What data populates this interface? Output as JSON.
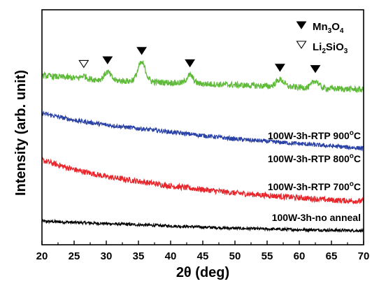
{
  "chart_data": {
    "type": "line",
    "xlabel": "2θ (deg)",
    "ylabel": "Intensity (arb. unit)",
    "xlim": [
      20,
      70
    ],
    "x_ticks": [
      20,
      25,
      30,
      35,
      40,
      45,
      50,
      55,
      60,
      65,
      70
    ],
    "y_ticks_shown": false,
    "grid": false,
    "series": [
      {
        "name": "100W-3h-no anneal",
        "color": "#000000",
        "points": [
          [
            20,
            0.1
          ],
          [
            25,
            0.095
          ],
          [
            30,
            0.09
          ],
          [
            35,
            0.085
          ],
          [
            40,
            0.08
          ],
          [
            45,
            0.075
          ],
          [
            50,
            0.07
          ],
          [
            55,
            0.067
          ],
          [
            60,
            0.064
          ],
          [
            65,
            0.062
          ],
          [
            70,
            0.06
          ]
        ],
        "peaks": []
      },
      {
        "name": "100W-3h-RTP 700°C",
        "color": "#e8262b",
        "points": [
          [
            20,
            0.36
          ],
          [
            25,
            0.32
          ],
          [
            30,
            0.29
          ],
          [
            35,
            0.27
          ],
          [
            40,
            0.25
          ],
          [
            45,
            0.235
          ],
          [
            50,
            0.22
          ],
          [
            55,
            0.21
          ],
          [
            60,
            0.2
          ],
          [
            65,
            0.19
          ],
          [
            70,
            0.185
          ]
        ],
        "peaks": []
      },
      {
        "name": "100W-3h-RTP 800°C",
        "color": "#2a41a5",
        "points": [
          [
            20,
            0.56
          ],
          [
            25,
            0.53
          ],
          [
            30,
            0.51
          ],
          [
            35,
            0.495
          ],
          [
            40,
            0.48
          ],
          [
            45,
            0.465
          ],
          [
            50,
            0.45
          ],
          [
            55,
            0.44
          ],
          [
            60,
            0.43
          ],
          [
            65,
            0.42
          ],
          [
            70,
            0.41
          ]
        ],
        "peaks": []
      },
      {
        "name": "100W-3h-RTP 900°C",
        "color": "#5fba3a",
        "points": [
          [
            20,
            0.72
          ],
          [
            25,
            0.71
          ],
          [
            30,
            0.7
          ],
          [
            35,
            0.695
          ],
          [
            40,
            0.69
          ],
          [
            45,
            0.685
          ],
          [
            50,
            0.68
          ],
          [
            55,
            0.675
          ],
          [
            60,
            0.67
          ],
          [
            65,
            0.665
          ],
          [
            70,
            0.66
          ]
        ],
        "peaks": [
          {
            "x": 26.5,
            "height": 0.012,
            "width": 0.4
          },
          {
            "x": 30.2,
            "height": 0.035,
            "width": 0.5
          },
          {
            "x": 35.5,
            "height": 0.08,
            "width": 0.6
          },
          {
            "x": 43.0,
            "height": 0.035,
            "width": 0.5
          },
          {
            "x": 57.0,
            "height": 0.03,
            "width": 0.6
          },
          {
            "x": 62.5,
            "height": 0.03,
            "width": 0.5
          }
        ]
      }
    ],
    "markers": [
      {
        "x": 26.5,
        "phase": "Li2SiO3",
        "symbol": "open-triangle-down"
      },
      {
        "x": 30.2,
        "phase": "Mn3O4",
        "symbol": "filled-triangle-down"
      },
      {
        "x": 35.5,
        "phase": "Mn3O4",
        "symbol": "filled-triangle-down"
      },
      {
        "x": 43.0,
        "phase": "Mn3O4",
        "symbol": "filled-triangle-down"
      },
      {
        "x": 57.0,
        "phase": "Mn3O4",
        "symbol": "filled-triangle-down"
      },
      {
        "x": 62.5,
        "phase": "Mn3O4",
        "symbol": "filled-triangle-down"
      }
    ],
    "legend": {
      "placement": "top-right",
      "entries": [
        {
          "symbol": "filled-triangle-down",
          "label_parts": [
            [
              "Mn",
              ""
            ],
            [
              "3",
              "sub"
            ],
            [
              "O",
              ""
            ],
            [
              "4",
              "sub"
            ]
          ]
        },
        {
          "symbol": "open-triangle-down",
          "label_parts": [
            [
              "Li",
              ""
            ],
            [
              "2",
              "sub"
            ],
            [
              "SiO",
              ""
            ],
            [
              "3",
              "sub"
            ]
          ]
        }
      ]
    },
    "series_labels": [
      {
        "series": "100W-3h-no anneal",
        "parts": [
          [
            "100W-3h-no anneal",
            ""
          ]
        ]
      },
      {
        "series": "100W-3h-RTP 700°C",
        "parts": [
          [
            "100W-3h-RTP 700",
            ""
          ],
          [
            "o",
            "sup"
          ],
          [
            "C",
            ""
          ]
        ]
      },
      {
        "series": "100W-3h-RTP 800°C",
        "parts": [
          [
            "100W-3h-RTP 800",
            ""
          ],
          [
            "o",
            "sup"
          ],
          [
            "C",
            ""
          ]
        ]
      },
      {
        "series": "100W-3h-RTP 900°C",
        "parts": [
          [
            "100W-3h-RTP 900",
            ""
          ],
          [
            "o",
            "sup"
          ],
          [
            "C",
            ""
          ]
        ]
      }
    ]
  }
}
